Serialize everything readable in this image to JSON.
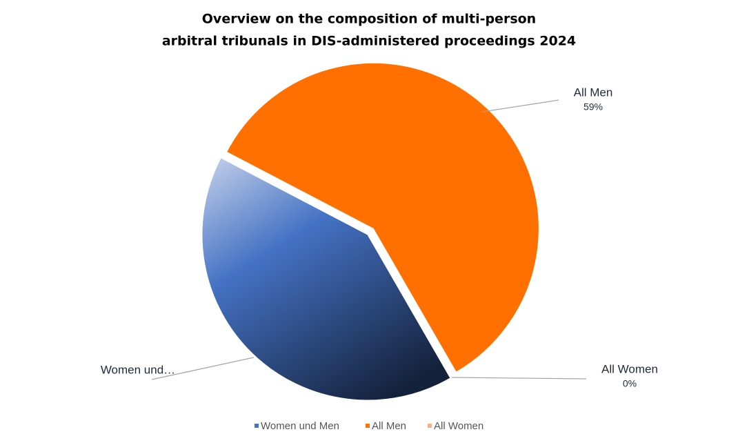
{
  "chart_data": {
    "type": "pie",
    "title": [
      "Overview on the composition of multi-person",
      "arbitral tribunals in DIS-administered proceedings 2024"
    ],
    "categories": [
      "Women und Men",
      "All Men",
      "All Women"
    ],
    "values": [
      41,
      59,
      0
    ],
    "value_labels": [
      null,
      "59%",
      "0%"
    ],
    "label_texts": [
      "Women und…",
      "All Men",
      "All Women"
    ],
    "colors": [
      "#4472c4",
      "#ff7000",
      "#f4b183"
    ],
    "legend": "bottom"
  }
}
